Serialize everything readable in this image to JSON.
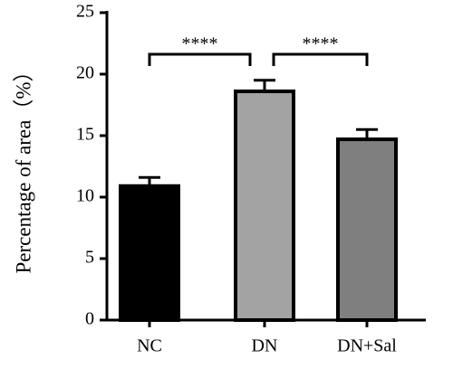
{
  "chart_data": {
    "type": "bar",
    "y_label": "Percentage of area（%）",
    "categories": [
      "NC",
      "DN",
      "DN+Sal"
    ],
    "values": [
      10.9,
      18.6,
      14.7
    ],
    "errors": [
      0.7,
      0.9,
      0.8
    ],
    "colors": [
      "#000000",
      "#a3a3a3",
      "#7f7f7f"
    ],
    "ylim": [
      0,
      25
    ],
    "yticks": [
      0,
      5,
      10,
      15,
      20,
      25
    ],
    "significance": [
      {
        "label": "****",
        "pair": [
          0,
          1
        ]
      },
      {
        "label": "****",
        "pair": [
          1,
          2
        ]
      }
    ]
  }
}
